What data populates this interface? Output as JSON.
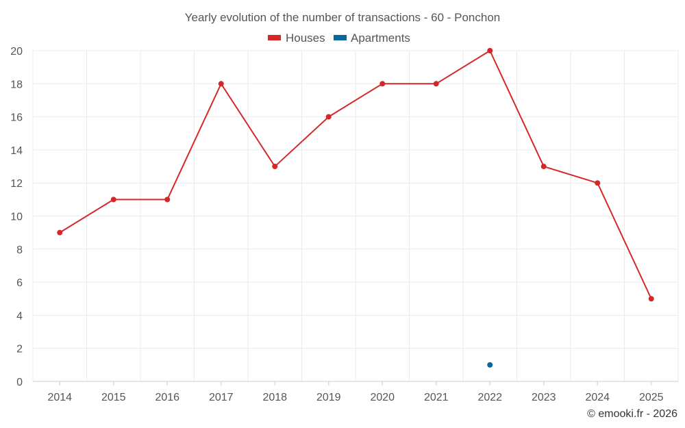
{
  "chart_data": {
    "type": "line",
    "title": "Yearly evolution of the number of transactions - 60 - Ponchon",
    "xlabel": "",
    "ylabel": "",
    "categories": [
      "2014",
      "2015",
      "2016",
      "2017",
      "2018",
      "2019",
      "2020",
      "2021",
      "2022",
      "2023",
      "2024",
      "2025"
    ],
    "ylim": [
      0,
      20
    ],
    "yticks": [
      0,
      2,
      4,
      6,
      8,
      10,
      12,
      14,
      16,
      18,
      20
    ],
    "grid": true,
    "legend_position": "top-center",
    "series": [
      {
        "name": "Houses",
        "color": "#d62728",
        "values": [
          9,
          11,
          11,
          18,
          13,
          16,
          18,
          18,
          20,
          13,
          12,
          5
        ]
      },
      {
        "name": "Apartments",
        "color": "#08679c",
        "values": [
          null,
          null,
          null,
          null,
          null,
          null,
          null,
          null,
          1,
          null,
          null,
          null
        ]
      }
    ],
    "credit": "© emooki.fr - 2026"
  }
}
